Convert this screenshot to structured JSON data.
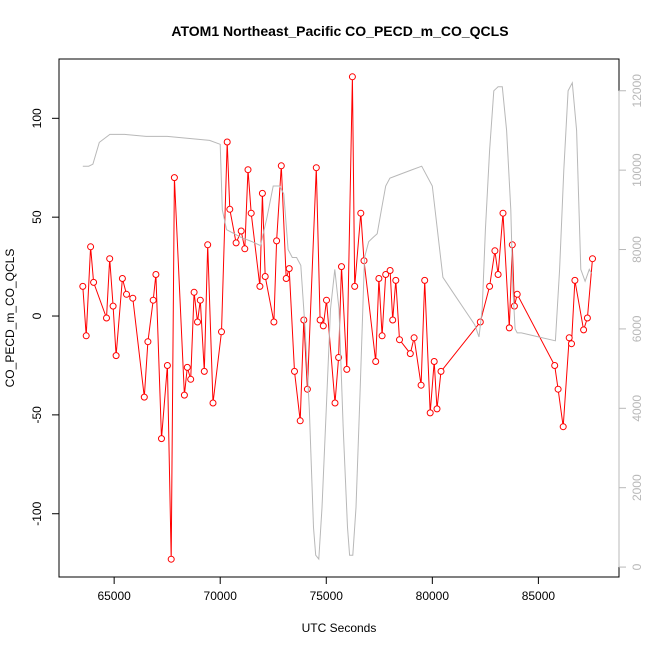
{
  "chart_data": {
    "type": "line",
    "title": "ATOM1 Northeast_Pacific CO_PECD_m_CO_QCLS",
    "xlabel": "UTC Seconds",
    "ylabel": "CO_PECD_m_CO_QCLS",
    "xlim": [
      62400,
      88800
    ],
    "ylim": [
      -132,
      130
    ],
    "y2lim": [
      -250,
      12800
    ],
    "x_ticks": [
      65000,
      70000,
      75000,
      80000,
      85000
    ],
    "y_ticks": [
      -100,
      -50,
      0,
      50,
      100
    ],
    "y2_ticks": [
      0,
      2000,
      4000,
      6000,
      8000,
      10000,
      12000
    ],
    "grid": false,
    "legend": "none",
    "series": [
      {
        "color": "#ff0000",
        "axis": "left",
        "style": "line+points",
        "x": [
          63520,
          63680,
          63890,
          64030,
          64640,
          64790,
          64950,
          65090,
          65390,
          65580,
          65880,
          66420,
          66590,
          66840,
          66970,
          67230,
          67510,
          67690,
          67840,
          68310,
          68450,
          68610,
          68770,
          68930,
          69060,
          69250,
          69410,
          69660,
          70060,
          70330,
          70450,
          70750,
          70990,
          71160,
          71310,
          71460,
          71870,
          71990,
          72120,
          72530,
          72660,
          72880,
          73110,
          73250,
          73500,
          73770,
          73940,
          74110,
          74530,
          74710,
          74860,
          75010,
          75410,
          75580,
          75720,
          75970,
          76230,
          76340,
          76630,
          76780,
          77330,
          77480,
          77630,
          77800,
          78010,
          78130,
          78280,
          78450,
          78960,
          79140,
          79470,
          79640,
          79900,
          80090,
          80220,
          80410,
          82260,
          82700,
          82950,
          83100,
          83330,
          83630,
          83770,
          83870,
          84000,
          85770,
          85930,
          86170,
          86450,
          86560,
          86720,
          87130,
          87310,
          87550
        ],
        "y": [
          15,
          -10,
          35,
          17,
          -1,
          29,
          5,
          -20,
          19,
          11,
          9,
          -41,
          -13,
          8,
          21,
          -62,
          -25,
          -123,
          70,
          -40,
          -26,
          -32,
          12,
          -3,
          8,
          -28,
          36,
          -44,
          -8,
          88,
          54,
          37,
          43,
          34,
          74,
          52,
          15,
          62,
          20,
          -3,
          38,
          76,
          19,
          24,
          -28,
          -53,
          -2,
          -37,
          75,
          -2,
          -5,
          8,
          -44,
          -21,
          25,
          -27,
          121,
          15,
          52,
          28,
          -23,
          19,
          -10,
          21,
          23,
          -2,
          18,
          -12,
          -19,
          -11,
          -35,
          18,
          -49,
          -23,
          -47,
          -28,
          -3,
          15,
          33,
          21,
          52,
          -6,
          36,
          5,
          11,
          -25,
          -37,
          -56,
          -11,
          -14,
          18,
          -7,
          -1,
          29
        ]
      },
      {
        "color": "#b8b8b8",
        "axis": "right",
        "style": "line",
        "x": [
          63520,
          63800,
          64000,
          64300,
          64800,
          65500,
          66500,
          67500,
          68500,
          69500,
          70000,
          70100,
          70300,
          71000,
          71500,
          71900,
          72200,
          72500,
          72800,
          73000,
          73200,
          73400,
          73600,
          73800,
          74000,
          74200,
          74400,
          74500,
          74650,
          74800,
          75000,
          75200,
          75400,
          75600,
          75800,
          76000,
          76100,
          76250,
          76400,
          76600,
          76800,
          77000,
          77200,
          77400,
          77600,
          77800,
          78000,
          78500,
          79000,
          79500,
          80000,
          80500,
          81000,
          81500,
          82000,
          82200,
          82350,
          82500,
          82700,
          82900,
          83100,
          83300,
          83500,
          83700,
          83800,
          83900,
          84000,
          84200,
          85000,
          85800,
          86000,
          86200,
          86400,
          86600,
          86800,
          87000,
          87200,
          87400,
          87500
        ],
        "y": [
          10100,
          10100,
          10150,
          10700,
          10900,
          10900,
          10850,
          10850,
          10800,
          10750,
          10650,
          9000,
          8500,
          8300,
          8200,
          8100,
          8800,
          9600,
          9600,
          9400,
          8000,
          7800,
          7800,
          7600,
          6000,
          4000,
          1000,
          300,
          200,
          1500,
          4000,
          6500,
          7500,
          6500,
          3500,
          1000,
          300,
          300,
          1500,
          4500,
          7800,
          8200,
          8300,
          8400,
          9000,
          9600,
          9800,
          9900,
          10000,
          10100,
          9600,
          7300,
          6900,
          6500,
          6100,
          5800,
          6500,
          8500,
          10500,
          12000,
          12100,
          12100,
          11000,
          9000,
          7000,
          6000,
          5900,
          5900,
          5800,
          5700,
          7500,
          10000,
          12000,
          12200,
          11000,
          7500,
          7200,
          7500,
          7400
        ]
      }
    ]
  }
}
